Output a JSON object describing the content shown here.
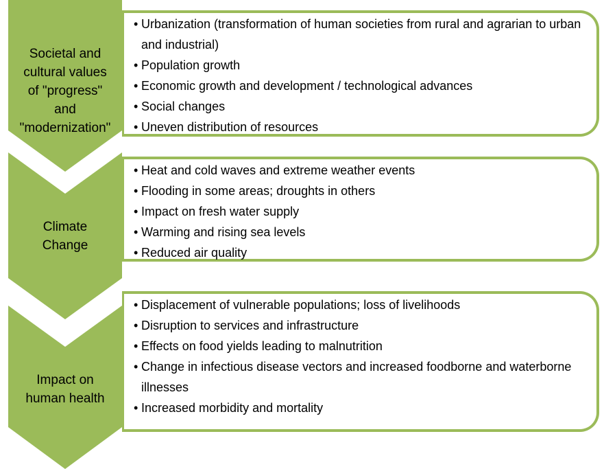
{
  "sections": [
    {
      "label": [
        "Societal and",
        "cultural values",
        "of \"progress\"",
        "and",
        "\"modernization\""
      ],
      "items": [
        "Urbanization (transformation of human societies from rural and agrarian to urban and industrial)",
        "Population growth",
        "Economic growth and development / technological advances",
        "Social changes",
        "Uneven distribution of resources"
      ]
    },
    {
      "label": [
        "Climate",
        "Change"
      ],
      "items": [
        "Heat and cold waves and extreme weather events",
        "Flooding in some areas; droughts in others",
        "Impact on fresh water supply",
        "Warming and rising sea levels",
        "Reduced air quality"
      ]
    },
    {
      "label": [
        "Impact on",
        "human health"
      ],
      "items": [
        "Displacement of vulnerable populations; loss of livelihoods",
        "Disruption to services and infrastructure",
        "Effects on food yields leading to malnutrition",
        "Change in infectious disease vectors and increased foodborne and waterborne illnesses",
        "Increased morbidity and mortality"
      ]
    }
  ]
}
